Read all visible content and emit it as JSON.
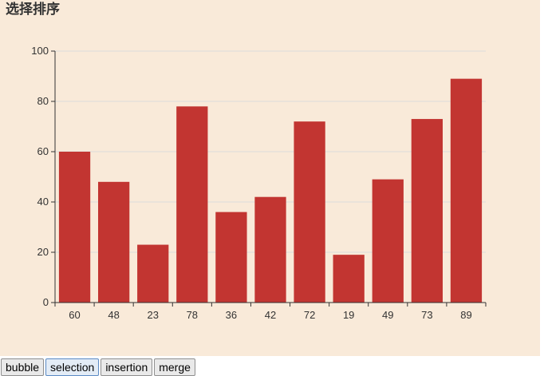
{
  "title": "选择排序",
  "buttons": [
    {
      "label": "bubble"
    },
    {
      "label": "selection"
    },
    {
      "label": "insertion"
    },
    {
      "label": "merge"
    }
  ],
  "colors": {
    "background": "#f9ead9",
    "bar": "#c23531",
    "grid": "#dcdcdc",
    "axis": "#333333"
  },
  "chart_data": {
    "type": "bar",
    "categories": [
      "60",
      "48",
      "23",
      "78",
      "36",
      "42",
      "72",
      "19",
      "49",
      "73",
      "89"
    ],
    "values": [
      60,
      48,
      23,
      78,
      36,
      42,
      72,
      19,
      49,
      73,
      89
    ],
    "ylim": [
      0,
      100
    ],
    "yticks": [
      0,
      20,
      40,
      60,
      80,
      100
    ],
    "grid": true,
    "title": "",
    "xlabel": "",
    "ylabel": ""
  }
}
